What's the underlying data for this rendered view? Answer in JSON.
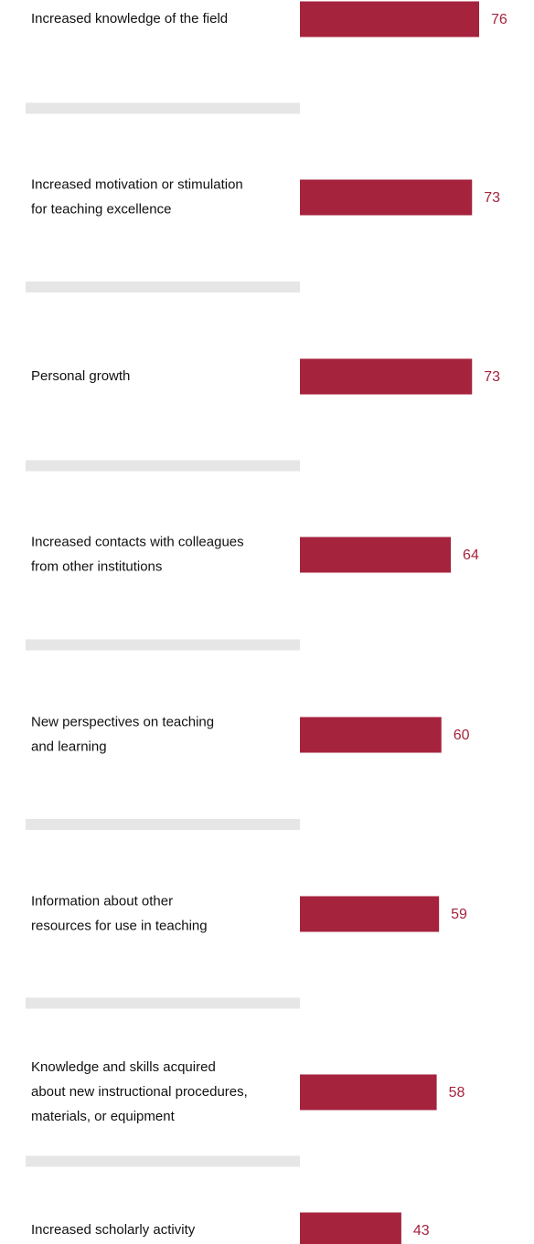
{
  "chart_data": {
    "type": "bar",
    "orientation": "horizontal",
    "color": "#a6233d",
    "categories": [
      [
        "Increased knowledge of the field"
      ],
      [
        "Increased motivation or stimulation",
        "for teaching excellence"
      ],
      [
        "Personal growth"
      ],
      [
        "Increased contacts with colleagues",
        "from other institutions"
      ],
      [
        "New perspectives on teaching",
        "and learning"
      ],
      [
        "Information about other",
        "resources for use in teaching"
      ],
      [
        "Knowledge and skills acquired",
        "about new instructional procedures,",
        "materials, or equipment"
      ],
      [
        "Increased scholarly activity"
      ]
    ],
    "values": [
      76,
      73,
      73,
      64,
      60,
      59,
      58,
      43
    ]
  }
}
